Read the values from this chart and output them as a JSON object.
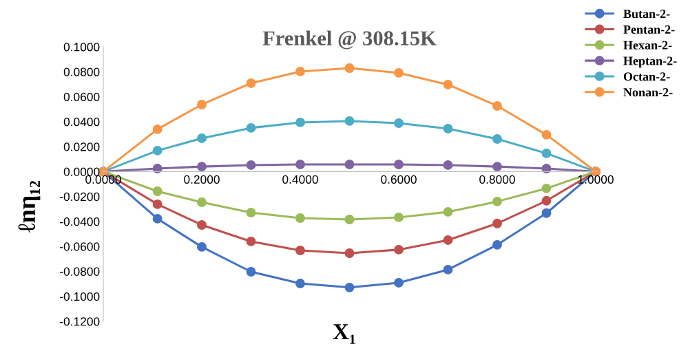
{
  "chart_data": {
    "type": "line",
    "title": "Frenkel @ 308.15K",
    "xlabel": "X₁",
    "ylabel": "ℓnη₁₂",
    "x": [
      0,
      0.11,
      0.2,
      0.3,
      0.4,
      0.5,
      0.6,
      0.7,
      0.8,
      0.9,
      1.0
    ],
    "series": [
      {
        "name": "Butan-2-",
        "color": "#4472c4",
        "values": [
          0,
          -0.0378,
          -0.0604,
          -0.0803,
          -0.0897,
          -0.0929,
          -0.0891,
          -0.0786,
          -0.0587,
          -0.0333,
          0
        ]
      },
      {
        "name": "Pentan-2-",
        "color": "#c0504d",
        "values": [
          0,
          -0.0262,
          -0.0428,
          -0.056,
          -0.0632,
          -0.0654,
          -0.0626,
          -0.0549,
          -0.0416,
          -0.0234,
          0
        ]
      },
      {
        "name": "Hexan-2-",
        "color": "#9bbb59",
        "values": [
          0,
          -0.0158,
          -0.0246,
          -0.0329,
          -0.0373,
          -0.0384,
          -0.0367,
          -0.0323,
          -0.024,
          -0.0135,
          0
        ]
      },
      {
        "name": "Heptan-2-",
        "color": "#8064a2",
        "values": [
          0,
          0.0024,
          0.004,
          0.0052,
          0.0057,
          0.0057,
          0.0057,
          0.0052,
          0.004,
          0.0024,
          0
        ]
      },
      {
        "name": "Octan-2-",
        "color": "#4bacc6",
        "values": [
          0,
          0.0168,
          0.0267,
          0.035,
          0.0394,
          0.0405,
          0.0388,
          0.0344,
          0.0261,
          0.0146,
          0
        ]
      },
      {
        "name": "Nonan-2-",
        "color": "#f79646",
        "values": [
          0,
          0.0339,
          0.0537,
          0.0708,
          0.0802,
          0.0829,
          0.0791,
          0.0697,
          0.0526,
          0.0295,
          0
        ]
      }
    ],
    "xlim": [
      0,
      1.0
    ],
    "ylim": [
      -0.12,
      0.1
    ],
    "xticks": [
      {
        "value": 0,
        "label": "0.0000"
      },
      {
        "value": 0.2,
        "label": "0.2000"
      },
      {
        "value": 0.4,
        "label": "0.4000"
      },
      {
        "value": 0.6,
        "label": "0.6000"
      },
      {
        "value": 0.8,
        "label": "0.8000"
      },
      {
        "value": 1.0,
        "label": "1.0000"
      }
    ],
    "yticks": [
      {
        "value": 0.1,
        "label": "0.1000"
      },
      {
        "value": 0.08,
        "label": "0.0800"
      },
      {
        "value": 0.06,
        "label": "0.0600"
      },
      {
        "value": 0.04,
        "label": "0.0400"
      },
      {
        "value": 0.02,
        "label": "0.0200"
      },
      {
        "value": 0,
        "label": "0.0000"
      },
      {
        "value": -0.02,
        "label": "-0.0200"
      },
      {
        "value": -0.04,
        "label": "-0.0400"
      },
      {
        "value": -0.06,
        "label": "-0.0600"
      },
      {
        "value": -0.08,
        "label": "-0.0800"
      },
      {
        "value": -0.1,
        "label": "-0.1000"
      },
      {
        "value": -0.12,
        "label": "-0.1200"
      }
    ],
    "marker": "circle",
    "line_style": "solid",
    "legend": "top right",
    "grid": false
  }
}
